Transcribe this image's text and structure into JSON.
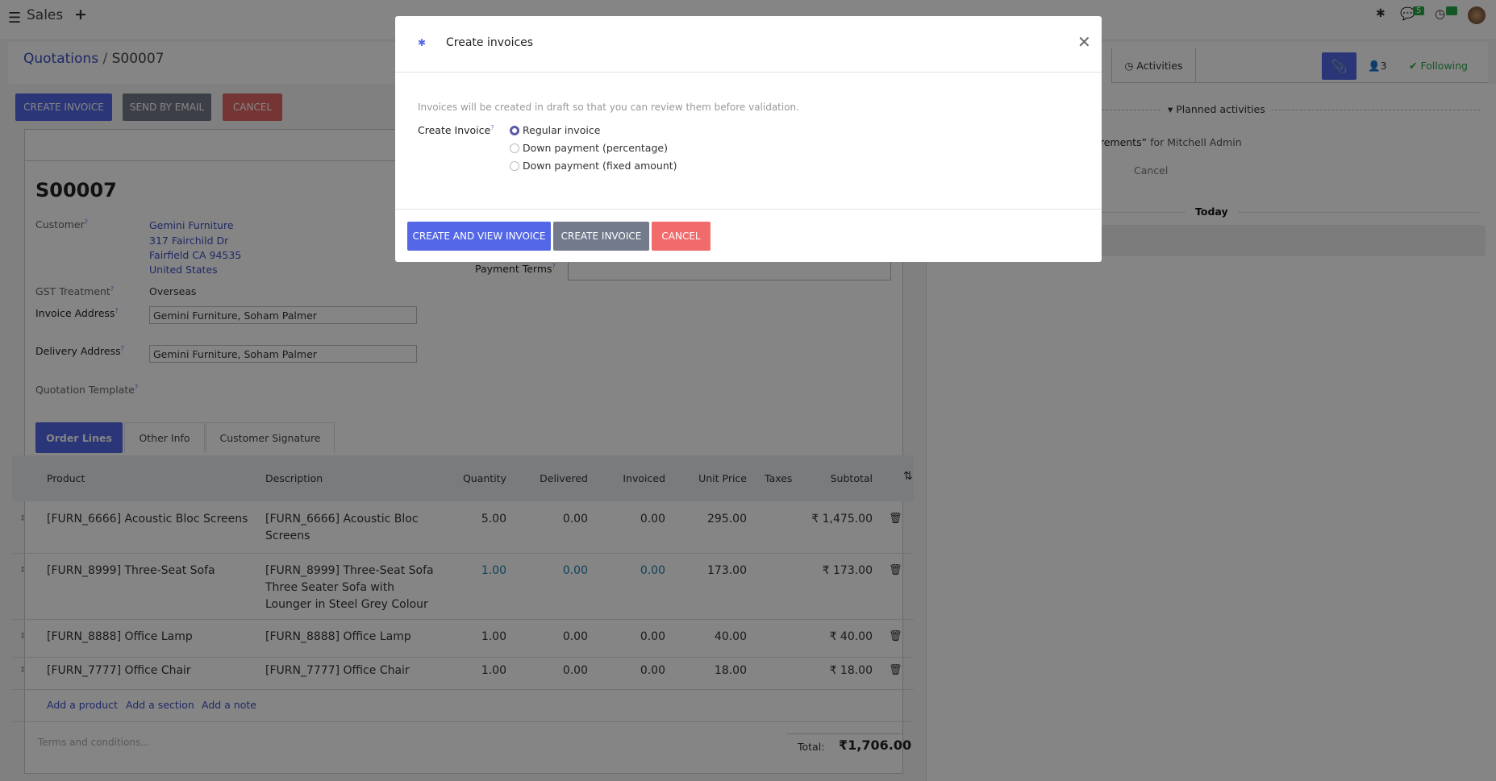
{
  "topbar": {
    "app": "Sales",
    "new_icon": "plus-icon",
    "menu_icon": "hamburger-icon",
    "messages_count": "5",
    "activities_count": "5"
  },
  "breadcrumb": {
    "parent": "Quotations",
    "sep": "/",
    "current": "S00007"
  },
  "actions": {
    "create_invoice": "CREATE INVOICE",
    "send_email": "SEND BY EMAIL",
    "cancel": "CANCEL"
  },
  "colors": {
    "primary": "#5468e7",
    "secondary": "#737a8c",
    "danger": "#f16b6b",
    "success": "#28a745"
  },
  "form": {
    "title": "S00007",
    "customer_label": "Customer",
    "customer_lines": [
      "Gemini Furniture",
      "317 Fairchild Dr",
      "Fairfield CA 94535",
      "United States"
    ],
    "gst_label": "GST Treatment",
    "gst_value": "Overseas",
    "invoice_address_label": "Invoice Address",
    "invoice_address": "Gemini Furniture, Soham Palmer",
    "delivery_address_label": "Delivery Address",
    "delivery_address": "Gemini Furniture, Soham Palmer",
    "template_label": "Quotation Template",
    "payment_terms_label": "Payment Terms",
    "help": "?"
  },
  "tabs": [
    "Order Lines",
    "Other Info",
    "Customer Signature"
  ],
  "table": {
    "headers": [
      "Product",
      "Description",
      "Quantity",
      "Delivered",
      "Invoiced",
      "Unit Price",
      "Taxes",
      "Subtotal"
    ],
    "rows": [
      {
        "product": "[FURN_6666] Acoustic Bloc Screens",
        "desc": [
          "[FURN_6666] Acoustic Bloc",
          "Screens"
        ],
        "qty": "5.00",
        "delivered": "0.00",
        "invoiced": "0.00",
        "price": "295.00",
        "subtotal": "₹ 1,475.00"
      },
      {
        "product": "[FURN_8999] Three-Seat Sofa",
        "desc": [
          "[FURN_8999] Three-Seat Sofa",
          "Three Seater Sofa with",
          "Lounger in Steel Grey Colour"
        ],
        "qty": "1.00",
        "delivered": "0.00",
        "invoiced": "0.00",
        "price": "173.00",
        "subtotal": "₹ 173.00"
      },
      {
        "product": "[FURN_8888] Office Lamp",
        "desc": [
          "[FURN_8888] Office Lamp"
        ],
        "qty": "1.00",
        "delivered": "0.00",
        "invoiced": "0.00",
        "price": "40.00",
        "subtotal": "₹ 40.00"
      },
      {
        "product": "[FURN_7777] Office Chair",
        "desc": [
          "[FURN_7777] Office Chair"
        ],
        "qty": "1.00",
        "delivered": "0.00",
        "invoiced": "0.00",
        "price": "18.00",
        "subtotal": "₹ 18.00"
      }
    ],
    "add_product": "Add a product",
    "add_section": "Add a section",
    "add_note": "Add a note"
  },
  "footer": {
    "terms_placeholder": "Terms and conditions...",
    "total_label": "Total:",
    "total": "₹1,706.00"
  },
  "chatter": {
    "activities": "Activities",
    "followers": "3",
    "following": "Following",
    "planned": "Planned activities",
    "activity_text": "“Delivery requirements”",
    "activity_for": "for Mitchell Admin",
    "cancel": "Cancel",
    "today": "Today"
  },
  "modal": {
    "title": "Create invoices",
    "info": "Invoices will be created in draft so that you can review them before validation.",
    "field_label": "Create Invoice",
    "options": [
      "Regular invoice",
      "Down payment (percentage)",
      "Down payment (fixed amount)"
    ],
    "selected": 0,
    "create_view": "CREATE AND VIEW INVOICE",
    "create": "CREATE INVOICE",
    "cancel": "CANCEL"
  }
}
